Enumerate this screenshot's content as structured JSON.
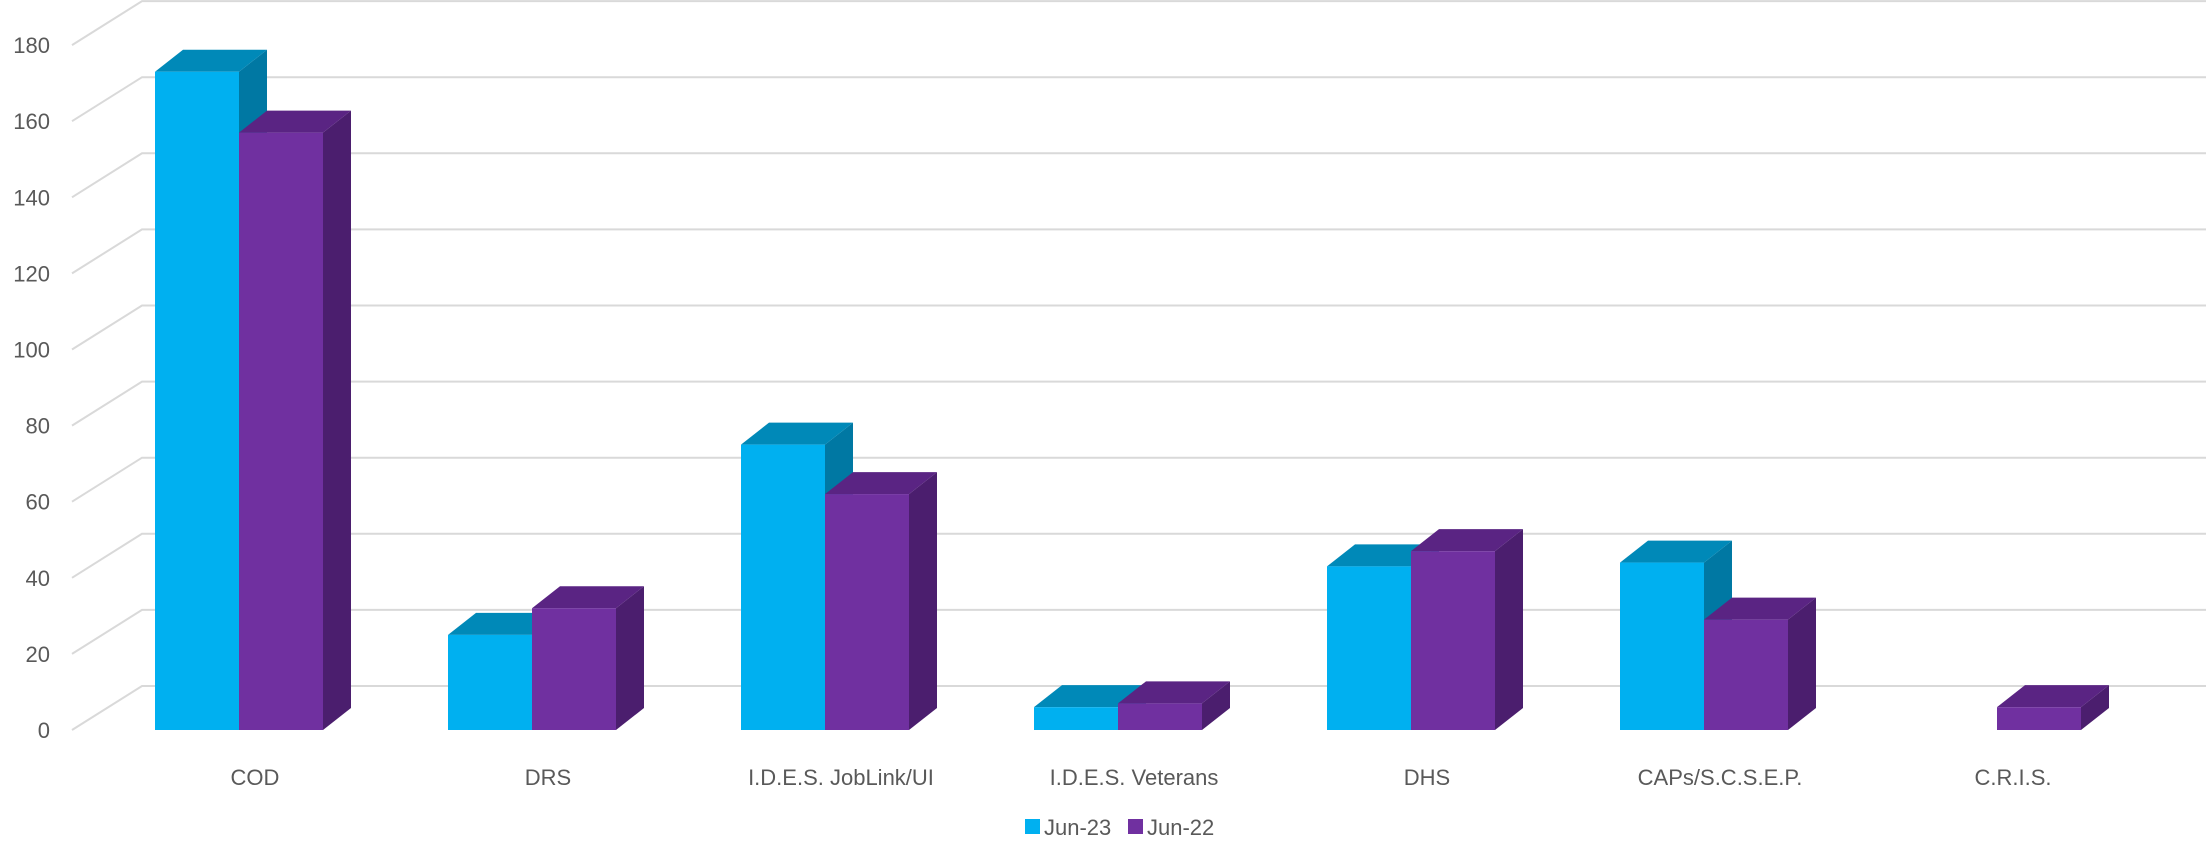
{
  "chart_data": {
    "type": "bar",
    "style": "3d-clustered-column",
    "categories": [
      "COD",
      "DRS",
      "I.D.E.S. JobLink/UI",
      "I.D.E.S. Veterans",
      "DHS",
      "CAPs/S.C.S.E.P.",
      "C.R.I.S."
    ],
    "series": [
      {
        "name": "Jun-23",
        "values": [
          173,
          25,
          75,
          6,
          43,
          44,
          0
        ],
        "color": "#00B0F0",
        "top_color": "#0089B8",
        "side_color": "#0078A3"
      },
      {
        "name": "Jun-22",
        "values": [
          157,
          32,
          62,
          7,
          47,
          29,
          6
        ],
        "color": "#7030A0",
        "top_color": "#5A2483",
        "side_color": "#4B1E6E"
      }
    ],
    "y_ticks": [
      "0",
      "20",
      "40",
      "60",
      "80",
      "100",
      "120",
      "140",
      "160",
      "180"
    ],
    "ylim": [
      0,
      180
    ],
    "grid": true,
    "legend_position": "bottom",
    "title": "",
    "xlabel": "",
    "ylabel": ""
  }
}
